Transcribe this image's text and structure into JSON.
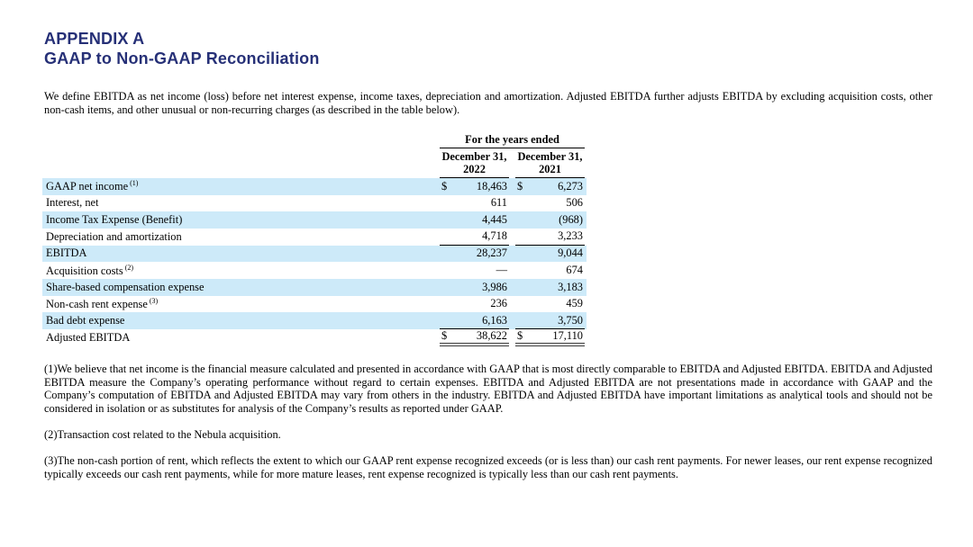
{
  "page": {
    "title_line1": "APPENDIX A",
    "title_line2": "GAAP to Non-GAAP Reconciliation",
    "title_color": "#263077",
    "intro": "We define EBITDA as net income (loss) before net interest expense, income taxes, depreciation and amortization. Adjusted EBITDA further adjusts EBITDA by excluding acquisition costs, other non-cash items, and other unusual or non-recurring charges (as described in the table below)."
  },
  "table": {
    "span_header": "For the years ended",
    "row_shade_color": "#cdeaf9",
    "columns": [
      {
        "line1": "December 31,",
        "line2": "2022"
      },
      {
        "line1": "December 31,",
        "line2": "2021"
      }
    ],
    "rows": [
      {
        "label": "GAAP net income",
        "sup": "(1)",
        "cells": [
          {
            "dollar": "$",
            "value": "18,463"
          },
          {
            "dollar": "$",
            "value": "6,273"
          }
        ],
        "shaded": true,
        "rule_below": false,
        "total": false
      },
      {
        "label": "Interest, net",
        "sup": "",
        "cells": [
          {
            "dollar": "",
            "value": "611"
          },
          {
            "dollar": "",
            "value": "506"
          }
        ],
        "shaded": false,
        "rule_below": false,
        "total": false
      },
      {
        "label": "Income Tax Expense (Benefit)",
        "sup": "",
        "cells": [
          {
            "dollar": "",
            "value": "4,445"
          },
          {
            "dollar": "",
            "value": "(968)"
          }
        ],
        "shaded": true,
        "rule_below": false,
        "total": false
      },
      {
        "label": "Depreciation and amortization",
        "sup": "",
        "cells": [
          {
            "dollar": "",
            "value": "4,718"
          },
          {
            "dollar": "",
            "value": "3,233"
          }
        ],
        "shaded": false,
        "rule_below": true,
        "total": false
      },
      {
        "label": "EBITDA",
        "sup": "",
        "cells": [
          {
            "dollar": "",
            "value": "28,237"
          },
          {
            "dollar": "",
            "value": "9,044"
          }
        ],
        "shaded": true,
        "rule_below": false,
        "total": false
      },
      {
        "label": "Acquisition costs",
        "sup": "(2)",
        "cells": [
          {
            "dollar": "",
            "value": "—"
          },
          {
            "dollar": "",
            "value": "674"
          }
        ],
        "shaded": false,
        "rule_below": false,
        "total": false
      },
      {
        "label": "Share-based compensation expense",
        "sup": "",
        "cells": [
          {
            "dollar": "",
            "value": "3,986"
          },
          {
            "dollar": "",
            "value": "3,183"
          }
        ],
        "shaded": true,
        "rule_below": false,
        "total": false
      },
      {
        "label": "Non-cash rent expense",
        "sup": "(3)",
        "cells": [
          {
            "dollar": "",
            "value": "236"
          },
          {
            "dollar": "",
            "value": "459"
          }
        ],
        "shaded": false,
        "rule_below": false,
        "total": false
      },
      {
        "label": "Bad debt expense",
        "sup": "",
        "cells": [
          {
            "dollar": "",
            "value": "6,163"
          },
          {
            "dollar": "",
            "value": "3,750"
          }
        ],
        "shaded": true,
        "rule_below": true,
        "total": false
      },
      {
        "label": "Adjusted EBITDA",
        "sup": "",
        "cells": [
          {
            "dollar": "$",
            "value": "38,622"
          },
          {
            "dollar": "$",
            "value": "17,110"
          }
        ],
        "shaded": false,
        "rule_below": false,
        "total": true
      }
    ]
  },
  "footnotes": [
    "(1)We believe that net income is the financial measure calculated and presented in accordance with GAAP that is most directly comparable to EBITDA and Adjusted EBITDA. EBITDA and Adjusted EBITDA measure the Company’s operating performance without regard to certain expenses. EBITDA and Adjusted EBITDA are not presentations made in accordance with GAAP and the Company’s computation of EBITDA and Adjusted EBITDA may vary from others in the industry. EBITDA and Adjusted EBITDA have important limitations as analytical tools and should not be considered in isolation or as substitutes for analysis of the Company’s results as reported under GAAP.",
    "(2)Transaction cost related to the Nebula acquisition.",
    "(3)The non-cash portion of rent, which reflects the extent to which our GAAP rent expense recognized exceeds (or is less than) our cash rent payments. For newer leases, our rent expense recognized typically exceeds our cash rent payments, while for more mature leases, rent expense recognized is typically less than our cash rent payments."
  ]
}
